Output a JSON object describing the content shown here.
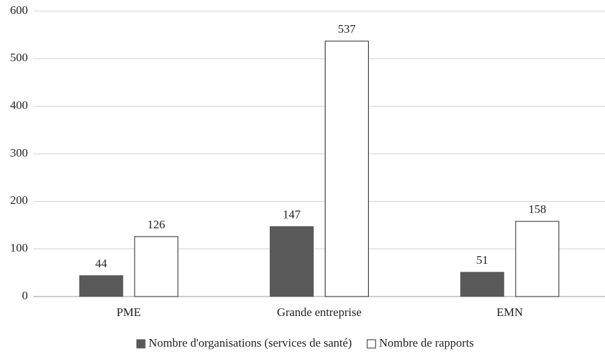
{
  "chart_data": {
    "type": "bar",
    "categories": [
      "PME",
      "Grande entreprise",
      "EMN"
    ],
    "series": [
      {
        "name": "Nombre d'organisations (services de santé)",
        "color": "#595959",
        "values": [
          44,
          147,
          51
        ]
      },
      {
        "name": "Nombre de rapports",
        "color": "#ffffff",
        "values": [
          126,
          537,
          158
        ]
      }
    ],
    "ylim": [
      0,
      600
    ],
    "yticks": [
      0,
      100,
      200,
      300,
      400,
      500,
      600
    ],
    "grid": true,
    "legend": "bottom"
  }
}
